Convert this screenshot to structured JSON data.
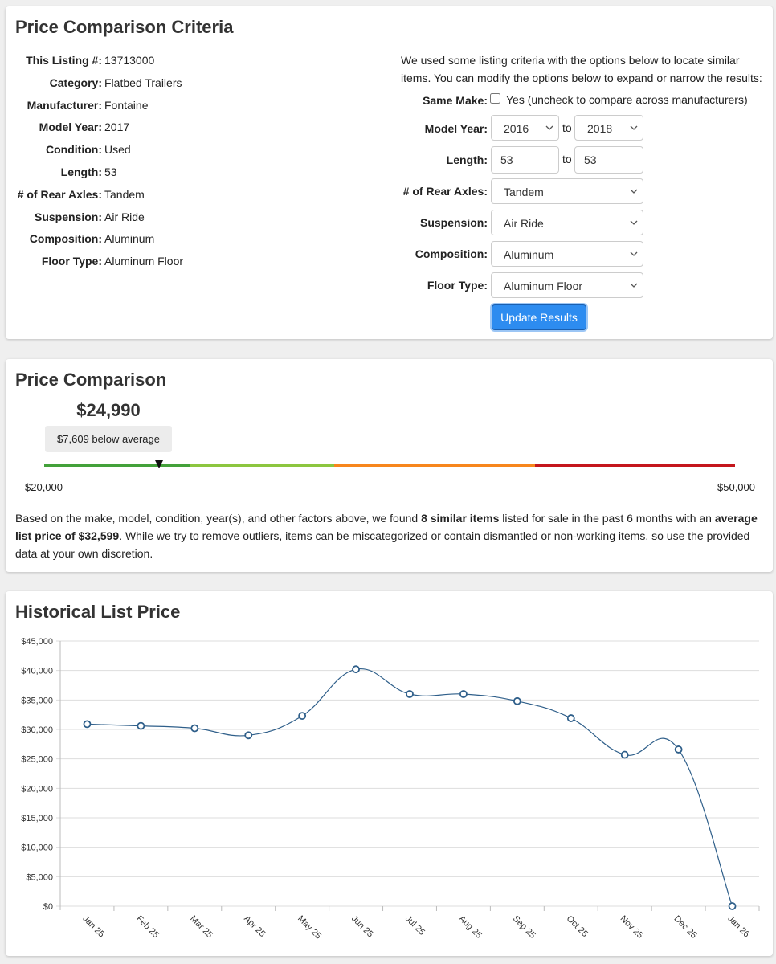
{
  "criteria": {
    "title": "Price Comparison Criteria",
    "items": [
      {
        "label": "This Listing #:",
        "value": 13713000
      },
      {
        "label": "Category:",
        "value": "Flatbed Trailers"
      },
      {
        "label": "Manufacturer:",
        "value": "Fontaine"
      },
      {
        "label": "Model Year:",
        "value": 2017
      },
      {
        "label": "Condition:",
        "value": "Used"
      },
      {
        "label": "Length:",
        "value": 53
      },
      {
        "label": "# of Rear Axles:",
        "value": "Tandem"
      },
      {
        "label": "Suspension:",
        "value": "Air Ride"
      },
      {
        "label": "Composition:",
        "value": "Aluminum"
      },
      {
        "label": "Floor Type:",
        "value": "Aluminum Floor"
      }
    ],
    "intro": "We used some listing criteria with the options below to locate similar items. You can modify the options below to expand or narrow the results:",
    "same_make": {
      "label": "Same Make:",
      "text": "Yes (uncheck to compare across manufacturers)"
    },
    "model_year": {
      "label": "Model Year:",
      "from": 2016,
      "separator": "to",
      "to": 2018
    },
    "length": {
      "label": "Length:",
      "from": 53,
      "separator": "to",
      "to": 53
    },
    "rear_axles": {
      "label": "# of Rear Axles:",
      "value": "Tandem"
    },
    "suspension": {
      "label": "Suspension:",
      "value": "Air Ride"
    },
    "composition": {
      "label": "Composition:",
      "value": "Aluminum"
    },
    "floor_type": {
      "label": "Floor Type:",
      "value": "Aluminum Floor"
    },
    "button": "Update Results"
  },
  "price_comparison": {
    "title": "Price Comparison",
    "price": {
      "value": 24990,
      "label": "$24,990"
    },
    "badge": "$7,609 below average",
    "gauge_min": {
      "value": 20000,
      "label": "$20,000"
    },
    "gauge_max": {
      "value": 50000,
      "label": "$50,000"
    },
    "summary": [
      "Based on the make, model, condition, year(s), and other factors above, we found ",
      "8 similar items",
      " listed for sale in the past 6 months with an ",
      "average list price of $32,599",
      ". While we try to remove outliers, items can be miscategorized or contain dismantled or non-working items, so use the provided data at your own discretion."
    ]
  },
  "chart_data": {
    "type": "line",
    "title": "Historical List Price",
    "categories": [
      "Jan 25",
      "Feb 25",
      "Mar 25",
      "Apr 25",
      "May 25",
      "Jun 25",
      "Jul 25",
      "Aug 25",
      "Sep 25",
      "Oct 25",
      "Nov 25",
      "Dec 25",
      "Jan 26"
    ],
    "values": [
      30900,
      30600,
      30200,
      29000,
      32300,
      40200,
      36000,
      36000,
      34800,
      31900,
      25700,
      26600,
      0
    ],
    "color": "#2f5f8a",
    "grid": true,
    "ylim": [
      0,
      45000
    ],
    "yticks": [
      {
        "value": 0,
        "label": "$0"
      },
      {
        "value": 5000,
        "label": "$5,000"
      },
      {
        "value": 10000,
        "label": "$10,000"
      },
      {
        "value": 15000,
        "label": "$15,000"
      },
      {
        "value": 20000,
        "label": "$20,000"
      },
      {
        "value": 25000,
        "label": "$25,000"
      },
      {
        "value": 30000,
        "label": "$30,000"
      },
      {
        "value": 35000,
        "label": "$35,000"
      },
      {
        "value": 40000,
        "label": "$40,000"
      },
      {
        "value": 45000,
        "label": "$45,000"
      }
    ]
  }
}
